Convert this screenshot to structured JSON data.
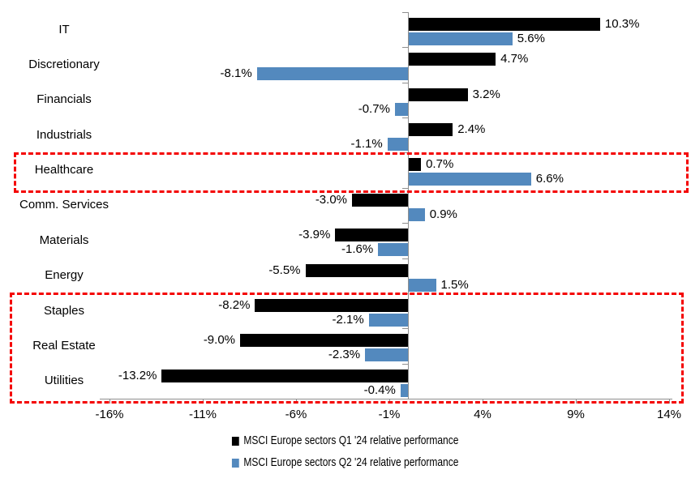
{
  "chart_data": {
    "type": "bar",
    "orientation": "horizontal",
    "title": "",
    "categories": [
      "IT",
      "Discretionary",
      "Financials",
      "Industrials",
      "Healthcare",
      "Comm. Services",
      "Materials",
      "Energy",
      "Staples",
      "Real Estate",
      "Utilities"
    ],
    "series": [
      {
        "name": "MSCI Europe sectors Q1 '24 relative performance",
        "color": "#000000",
        "values": [
          10.3,
          4.7,
          3.2,
          2.4,
          0.7,
          -3.0,
          -3.9,
          -5.5,
          -8.2,
          -9.0,
          -13.2
        ],
        "labels": [
          "10.3%",
          "4.7%",
          "3.2%",
          "2.4%",
          "0.7%",
          "-3.0%",
          "-3.9%",
          "-5.5%",
          "-8.2%",
          "-9.0%",
          "-13.2%"
        ]
      },
      {
        "name": "MSCI Europe sectors Q2 '24 relative performance",
        "color": "#5389BE",
        "values": [
          5.6,
          -8.1,
          -0.7,
          -1.1,
          6.6,
          0.9,
          -1.6,
          1.5,
          -2.1,
          -2.3,
          -0.4
        ],
        "labels": [
          "5.6%",
          "-8.1%",
          "-0.7%",
          "-1.1%",
          "6.6%",
          "0.9%",
          "-1.6%",
          "1.5%",
          "-2.1%",
          "-2.3%",
          "-0.4%"
        ]
      }
    ],
    "x_axis": {
      "tick_labels": [
        "-16%",
        "-11%",
        "-6%",
        "-1%",
        "4%",
        "9%",
        "14%"
      ],
      "tick_values": [
        -16,
        -11,
        -6,
        -1,
        4,
        9,
        14
      ],
      "range": [
        -16.5,
        14.2
      ],
      "unit": "%"
    },
    "grid": false,
    "data_labels_visible": true,
    "legend_position": "bottom",
    "highlights": [
      {
        "style": "red-dashed-box",
        "categories": [
          "Healthcare"
        ]
      },
      {
        "style": "red-dashed-box",
        "categories": [
          "Staples",
          "Real Estate",
          "Utilities"
        ]
      }
    ],
    "colors": {
      "series_q1": "#000000",
      "series_q2": "#5389BE",
      "highlight_border": "#f40000",
      "axis": "#8f8f8f",
      "text": "#000000",
      "background": "#ffffff"
    }
  }
}
